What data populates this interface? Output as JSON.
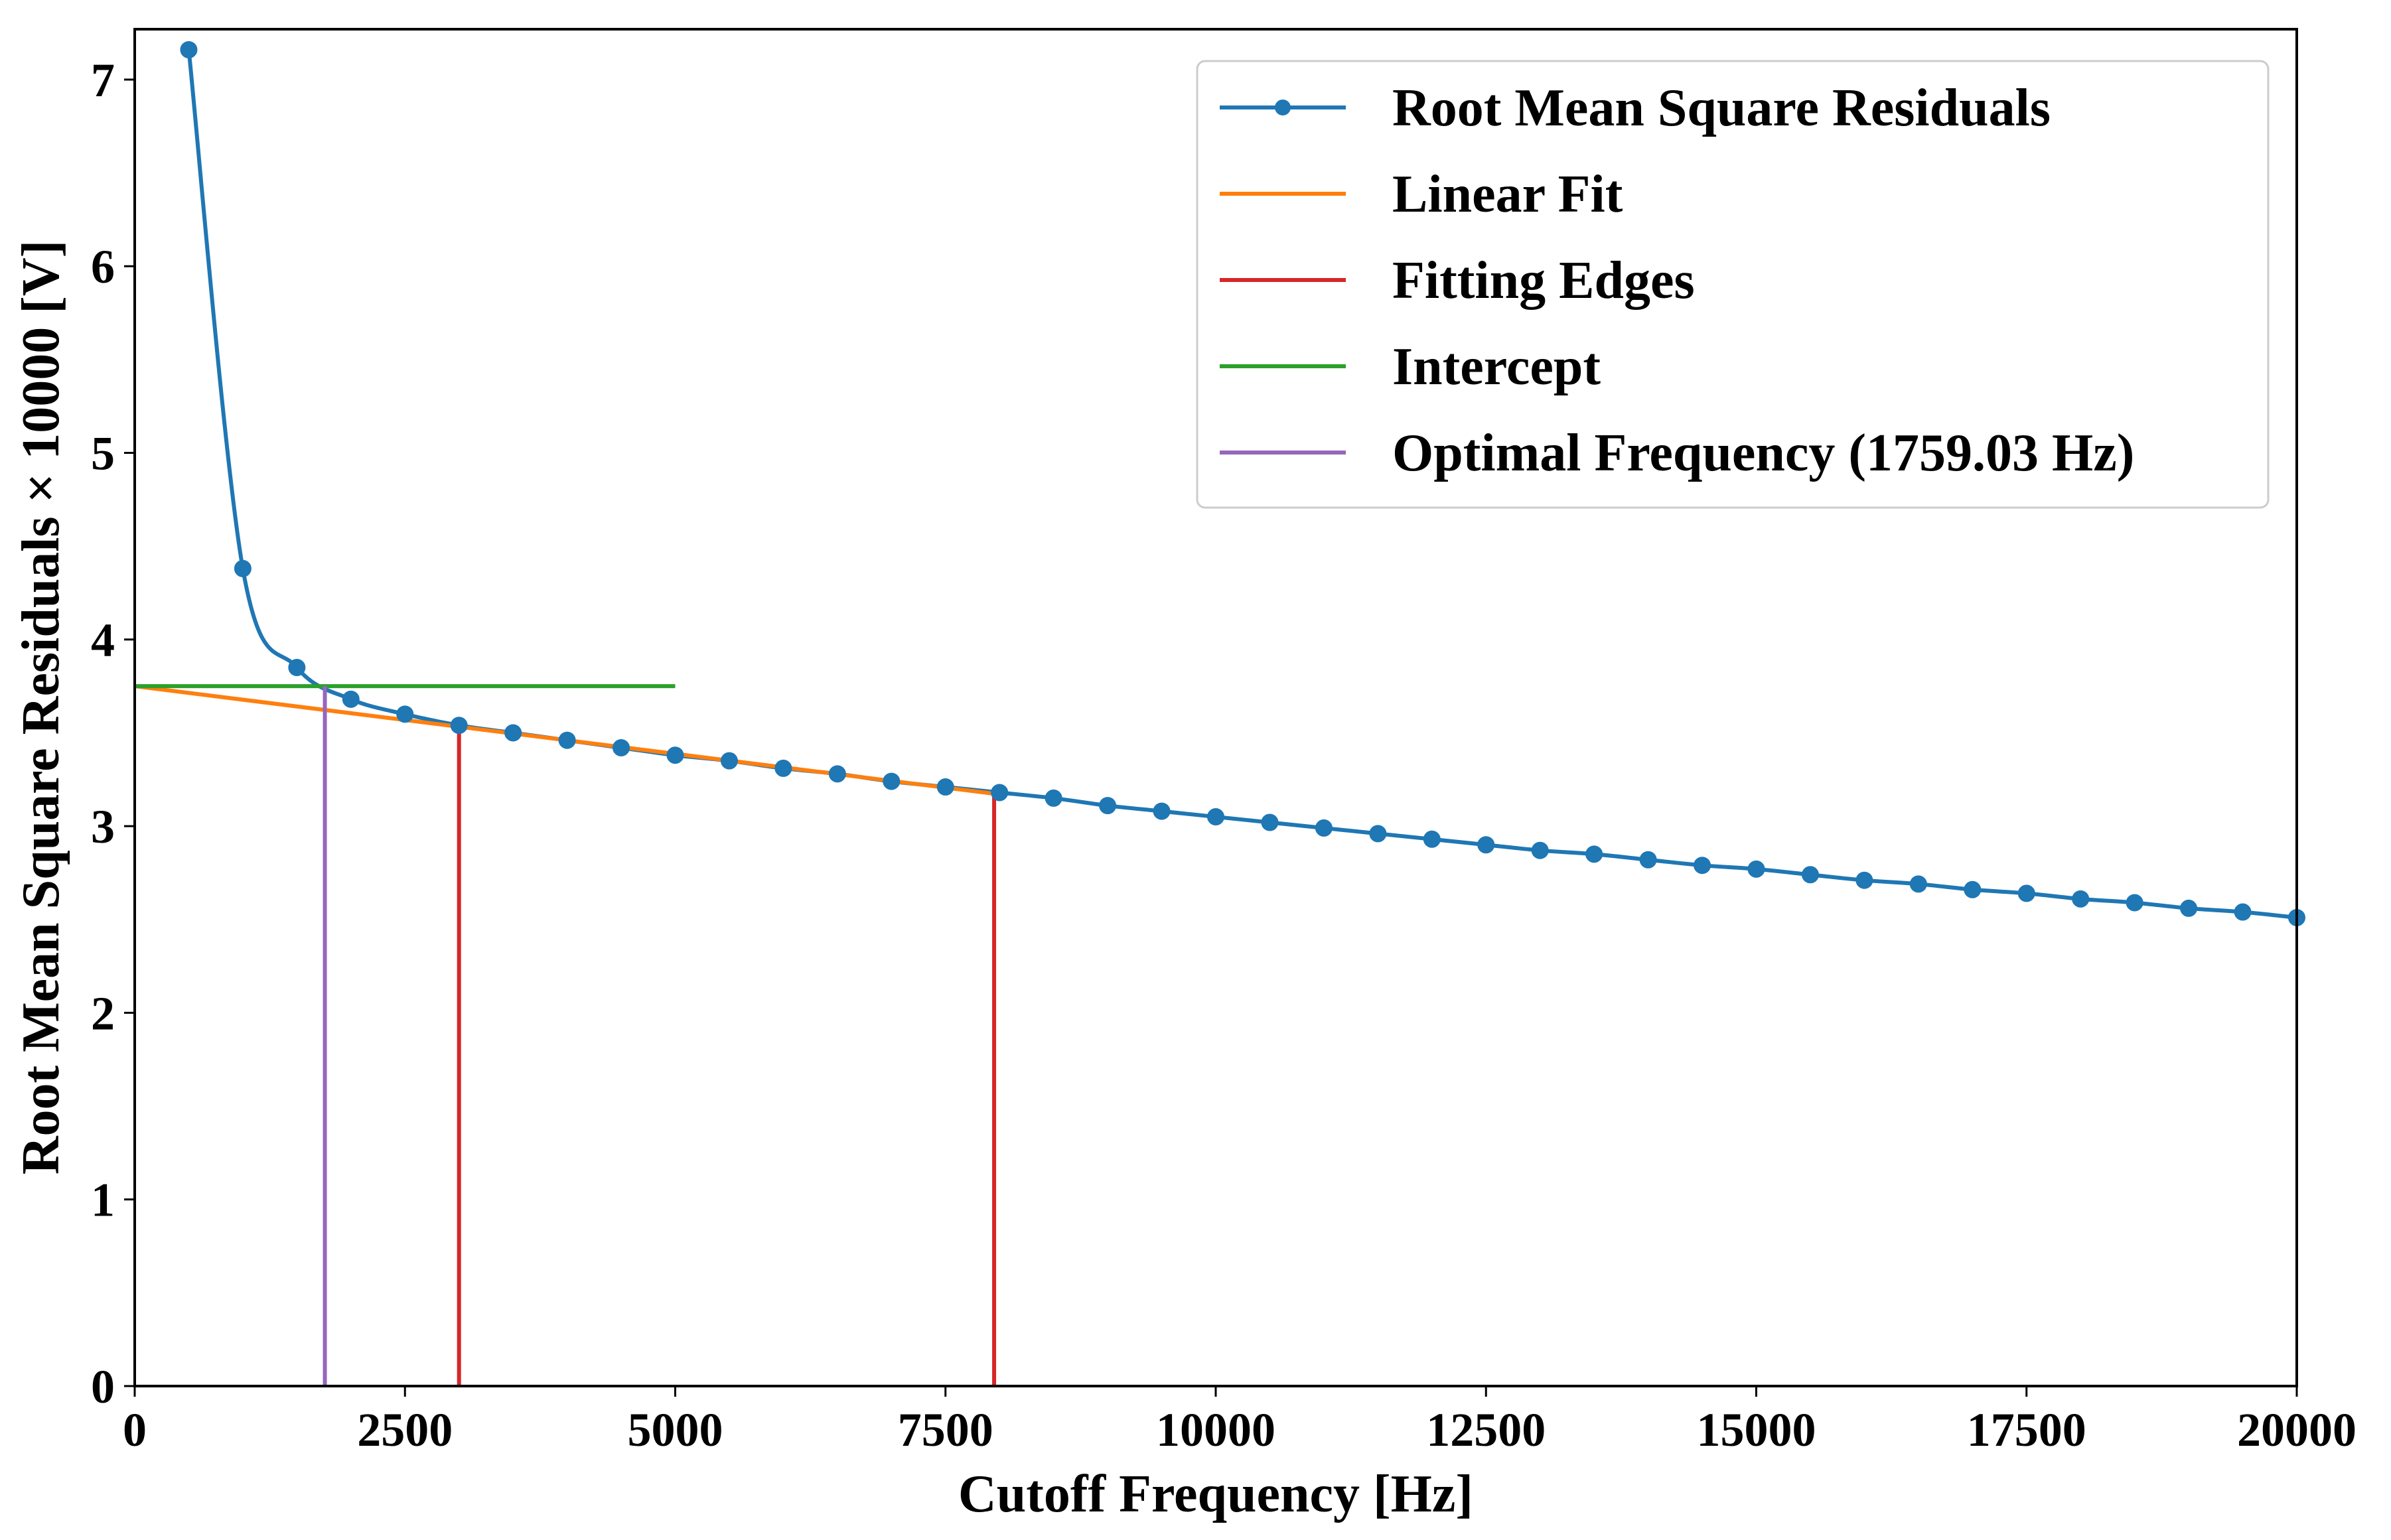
{
  "chart_data": {
    "type": "line",
    "title": "",
    "xlabel": "Cutoff Frequency [Hz]",
    "ylabel": "Root Mean Square Residuals × 10000 [V]",
    "xlim": [
      0,
      20000
    ],
    "ylim": [
      0,
      7.27
    ],
    "xticks": [
      "0",
      "2500",
      "5000",
      "7500",
      "10000",
      "12500",
      "15000",
      "17500",
      "20000"
    ],
    "yticks": [
      "0",
      "1",
      "2",
      "3",
      "4",
      "5",
      "6",
      "7"
    ],
    "grid": false,
    "legend_position": "top-right",
    "series": [
      {
        "name": "Root Mean Square Residuals",
        "kind": "line-markers",
        "color": "#1f77b4",
        "x": [
          500,
          1000,
          1500,
          2000,
          2500,
          3000,
          3500,
          4000,
          4500,
          5000,
          5500,
          6000,
          6500,
          7000,
          7500,
          8000,
          8500,
          9000,
          9500,
          10000,
          10500,
          11000,
          11500,
          12000,
          12500,
          13000,
          13500,
          14000,
          14500,
          15000,
          15500,
          16000,
          16500,
          17000,
          17500,
          18000,
          18500,
          19000,
          19500,
          20000
        ],
        "y": [
          7.16,
          4.38,
          3.85,
          3.68,
          3.6,
          3.54,
          3.5,
          3.46,
          3.42,
          3.38,
          3.35,
          3.31,
          3.28,
          3.24,
          3.21,
          3.18,
          3.15,
          3.11,
          3.08,
          3.05,
          3.02,
          2.99,
          2.96,
          2.93,
          2.9,
          2.87,
          2.85,
          2.82,
          2.79,
          2.77,
          2.74,
          2.71,
          2.69,
          2.66,
          2.64,
          2.61,
          2.59,
          2.56,
          2.54,
          2.51
        ]
      },
      {
        "name": "Linear Fit",
        "kind": "line",
        "color": "#ff7f0e",
        "x": [
          0,
          8000
        ],
        "y": [
          3.75,
          3.17
        ]
      },
      {
        "name": "Fitting Edges",
        "kind": "vlines",
        "color": "#d62728",
        "x": [
          3000,
          7950
        ],
        "y_bottom": [
          0,
          0
        ],
        "y_top": [
          3.54,
          3.18
        ]
      },
      {
        "name": "Intercept",
        "kind": "hline",
        "color": "#2ca02c",
        "x": [
          0,
          5000
        ],
        "y": [
          3.75,
          3.75
        ]
      },
      {
        "name": "Optimal Frequency (1759.03 Hz)",
        "kind": "vline",
        "color": "#9467bd",
        "x": [
          1759.03
        ],
        "y_bottom": [
          0
        ],
        "y_top": [
          3.75
        ]
      }
    ]
  }
}
